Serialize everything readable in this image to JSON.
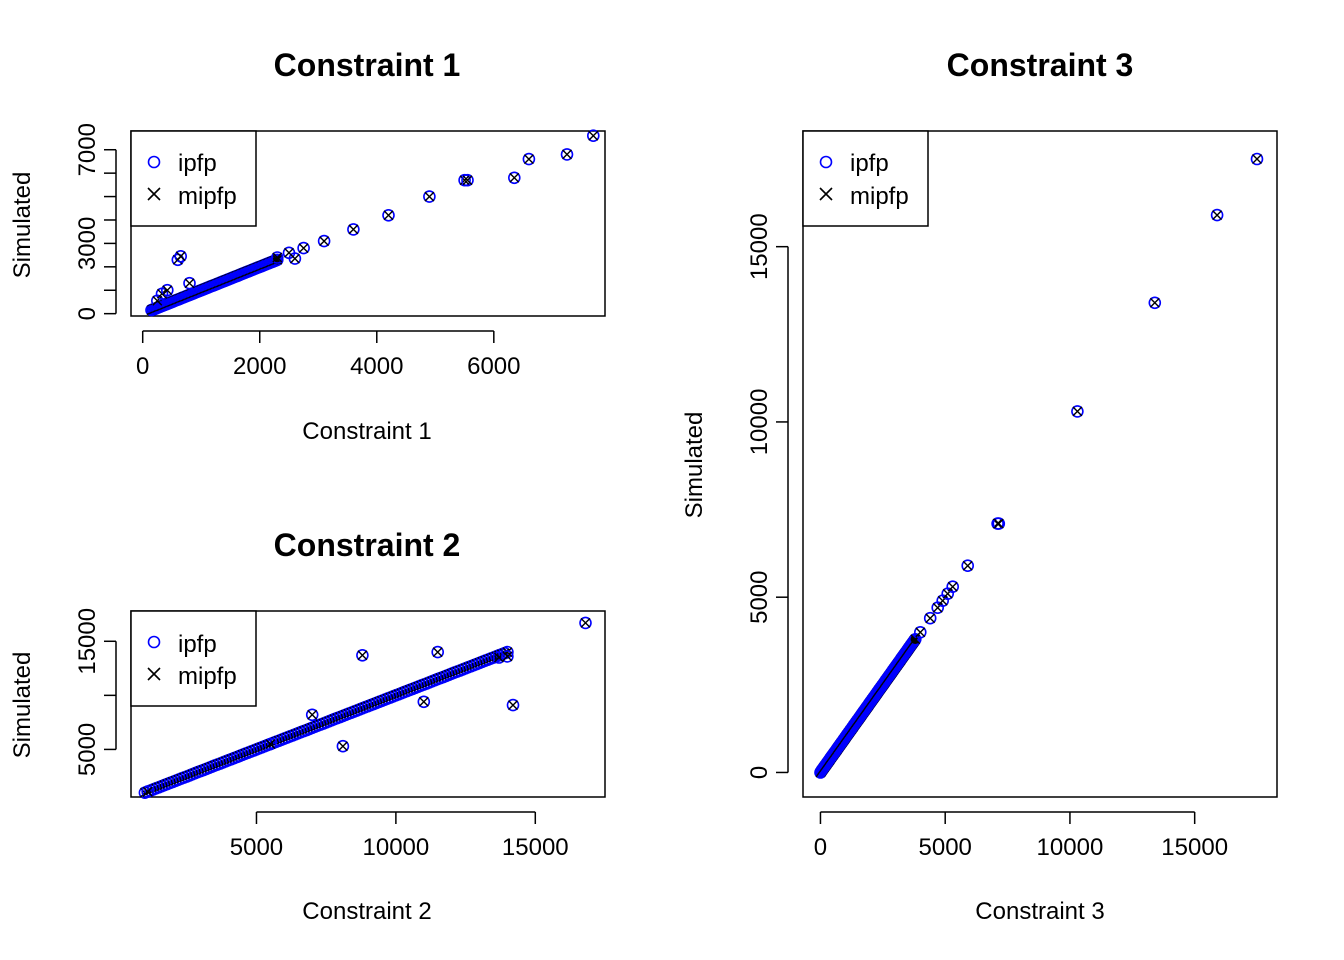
{
  "chart_data": [
    {
      "type": "scatter",
      "title": "Constraint 1",
      "xlabel": "Constraint 1",
      "ylabel": "Simulated",
      "xlim": [
        -200,
        7900
      ],
      "ylim": [
        -100,
        7800
      ],
      "xticks": [
        "0",
        "2000",
        "4000",
        "6000"
      ],
      "xtick_values": [
        0,
        2000,
        4000,
        6000
      ],
      "yticks": [
        "0",
        "3000",
        "7000"
      ],
      "ytick_values": [
        0,
        1000,
        2000,
        3000,
        4000,
        5000,
        6000,
        7000
      ],
      "ytick_labels_shown": [
        0,
        3000,
        7000
      ],
      "legend": [
        "ipfp",
        "mipfp"
      ],
      "legend_position": "top-left",
      "series": [
        {
          "name": "ipfp",
          "marker": "circle",
          "color": "#0000ff"
        },
        {
          "name": "mipfp",
          "marker": "x",
          "color": "#000000"
        }
      ],
      "dense_diagonal": {
        "from": 150,
        "to": 2300,
        "count": 90
      },
      "points": [
        [
          250,
          550
        ],
        [
          330,
          850
        ],
        [
          420,
          1000
        ],
        [
          600,
          2300
        ],
        [
          650,
          2450
        ],
        [
          800,
          1300
        ],
        [
          2300,
          2400
        ],
        [
          2500,
          2600
        ],
        [
          2600,
          2350
        ],
        [
          2750,
          2800
        ],
        [
          3100,
          3100
        ],
        [
          3600,
          3600
        ],
        [
          4200,
          4200
        ],
        [
          4900,
          5000
        ],
        [
          5500,
          5700
        ],
        [
          5550,
          5700
        ],
        [
          6350,
          5800
        ],
        [
          6600,
          6600
        ],
        [
          7250,
          6800
        ],
        [
          7700,
          7600
        ]
      ]
    },
    {
      "type": "scatter",
      "title": "Constraint 2",
      "xlabel": "Constraint 2",
      "ylabel": "Simulated",
      "xlim": [
        500,
        17500
      ],
      "ylim": [
        600,
        17800
      ],
      "xticks": [
        "5000",
        "10000",
        "15000"
      ],
      "xtick_values": [
        5000,
        10000,
        15000
      ],
      "yticks": [
        "5000",
        "15000"
      ],
      "ytick_values": [
        5000,
        10000,
        15000
      ],
      "ytick_labels_shown": [
        5000,
        15000
      ],
      "legend": [
        "ipfp",
        "mipfp"
      ],
      "legend_position": "top-left",
      "series": [
        {
          "name": "ipfp",
          "marker": "circle",
          "color": "#0000ff"
        },
        {
          "name": "mipfp",
          "marker": "x",
          "color": "#000000"
        }
      ],
      "dense_diagonal": {
        "from": 1000,
        "to": 14000,
        "count": 130
      },
      "points": [
        [
          1100,
          1100
        ],
        [
          5500,
          5500
        ],
        [
          7000,
          8200
        ],
        [
          8100,
          5300
        ],
        [
          8800,
          13700
        ],
        [
          11000,
          9400
        ],
        [
          11500,
          14000
        ],
        [
          13700,
          13500
        ],
        [
          14000,
          13600
        ],
        [
          14200,
          9100
        ],
        [
          16800,
          16700
        ]
      ]
    },
    {
      "type": "scatter",
      "title": "Constraint 3",
      "xlabel": "Constraint 3",
      "ylabel": "Simulated",
      "xlim": [
        -700,
        18300
      ],
      "ylim": [
        -700,
        18300
      ],
      "xticks": [
        "0",
        "5000",
        "10000",
        "15000"
      ],
      "xtick_values": [
        0,
        5000,
        10000,
        15000
      ],
      "yticks": [
        "0",
        "5000",
        "10000",
        "15000"
      ],
      "ytick_values": [
        0,
        5000,
        10000,
        15000
      ],
      "ytick_labels_shown": [
        0,
        5000,
        10000,
        15000
      ],
      "legend": [
        "ipfp",
        "mipfp"
      ],
      "legend_position": "top-left",
      "series": [
        {
          "name": "ipfp",
          "marker": "circle",
          "color": "#0000ff"
        },
        {
          "name": "mipfp",
          "marker": "x",
          "color": "#000000"
        }
      ],
      "dense_diagonal": {
        "from": 0,
        "to": 3800,
        "count": 160
      },
      "points": [
        [
          4000,
          4000
        ],
        [
          4400,
          4400
        ],
        [
          4700,
          4700
        ],
        [
          4900,
          4900
        ],
        [
          5100,
          5100
        ],
        [
          5300,
          5300
        ],
        [
          5900,
          5900
        ],
        [
          7100,
          7100
        ],
        [
          7150,
          7100
        ],
        [
          10300,
          10300
        ],
        [
          13400,
          13400
        ],
        [
          15900,
          15900
        ],
        [
          17500,
          17500
        ]
      ]
    }
  ]
}
